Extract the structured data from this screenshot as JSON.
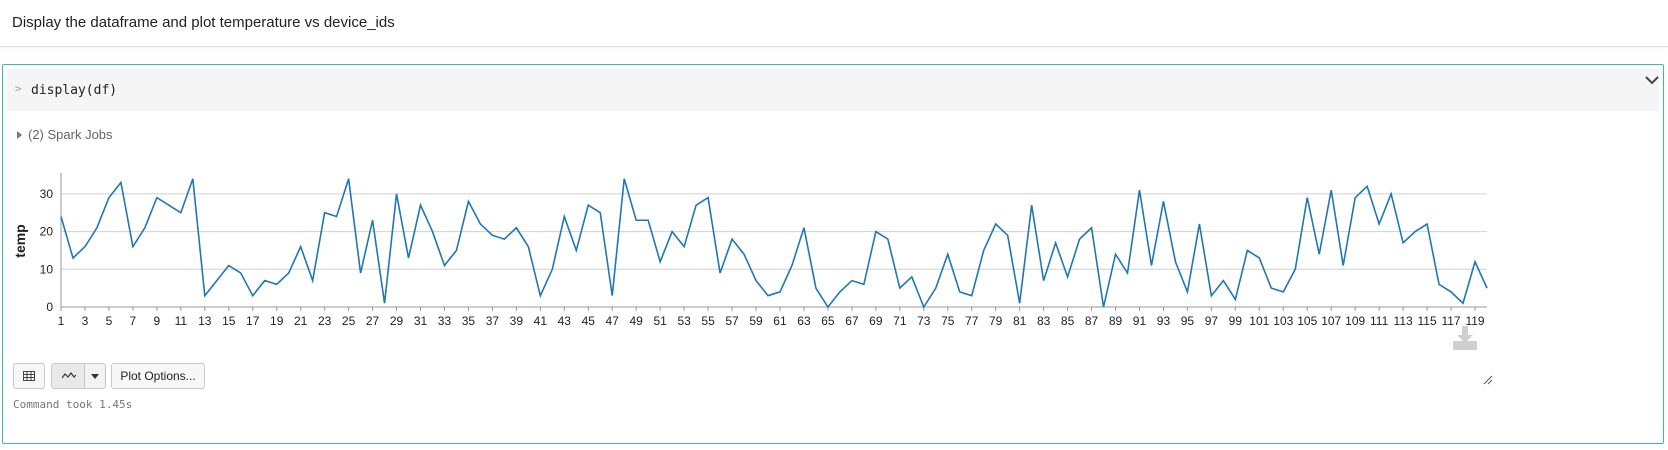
{
  "markdown": {
    "text": "Display the dataframe and plot temperature vs device_ids"
  },
  "code_cell": {
    "code": "display(df)",
    "spark_jobs_label": "(2) Spark Jobs",
    "plot_options_label": "Plot Options...",
    "status_text": "Command took 1.45s"
  },
  "icons": {
    "collapse": "chevron-down-icon",
    "table": "table-icon",
    "line_chart": "line-chart-icon",
    "download": "download-icon",
    "resize": "resize-handle-icon"
  },
  "colors": {
    "accent": "#3cb8b3",
    "series": "#1f77b4"
  },
  "chart_data": {
    "type": "line",
    "xlabel": "",
    "ylabel": "temp",
    "ylim": [
      0,
      35
    ],
    "yticks": [
      0,
      10,
      20,
      30
    ],
    "grid": true,
    "x": [
      1,
      2,
      3,
      4,
      5,
      6,
      7,
      8,
      9,
      10,
      11,
      12,
      13,
      14,
      15,
      16,
      17,
      18,
      19,
      20,
      21,
      22,
      23,
      24,
      25,
      26,
      27,
      28,
      29,
      30,
      31,
      32,
      33,
      34,
      35,
      36,
      37,
      38,
      39,
      40,
      41,
      42,
      43,
      44,
      45,
      46,
      47,
      48,
      49,
      50,
      51,
      52,
      53,
      54,
      55,
      56,
      57,
      58,
      59,
      60,
      61,
      62,
      63,
      64,
      65,
      66,
      67,
      68,
      69,
      70,
      71,
      72,
      73,
      74,
      75,
      76,
      77,
      78,
      79,
      80,
      81,
      82,
      83,
      84,
      85,
      86,
      87,
      88,
      89,
      90,
      91,
      92,
      93,
      94,
      95,
      96,
      97,
      98,
      99,
      100,
      101,
      102,
      103,
      104,
      105,
      106,
      107,
      108,
      109,
      110,
      111,
      112,
      113,
      114,
      115,
      116,
      117,
      118,
      119,
      120
    ],
    "xtick_labels": [
      1,
      3,
      5,
      7,
      9,
      11,
      13,
      15,
      17,
      19,
      21,
      23,
      25,
      27,
      29,
      31,
      33,
      35,
      37,
      39,
      41,
      43,
      45,
      47,
      49,
      51,
      53,
      55,
      57,
      59,
      61,
      63,
      65,
      67,
      69,
      71,
      73,
      75,
      77,
      79,
      81,
      83,
      85,
      87,
      89,
      91,
      93,
      95,
      97,
      99,
      101,
      103,
      105,
      107,
      109,
      111,
      113,
      115,
      117,
      119
    ],
    "series": [
      {
        "values": [
          24,
          13,
          16,
          21,
          29,
          33,
          16,
          21,
          29,
          27,
          25,
          34,
          3,
          7,
          11,
          9,
          3,
          7,
          6,
          9,
          16,
          7,
          25,
          24,
          34,
          9,
          23,
          1,
          30,
          13,
          27,
          20,
          11,
          15,
          28,
          22,
          19,
          18,
          21,
          16,
          3,
          10,
          24,
          15,
          27,
          25,
          3,
          34,
          23,
          23,
          12,
          20,
          16,
          27,
          29,
          9,
          18,
          14,
          7,
          3,
          4,
          11,
          21,
          5,
          0,
          4,
          7,
          6,
          20,
          18,
          5,
          8,
          0,
          5,
          14,
          4,
          3,
          15,
          22,
          19,
          1,
          27,
          7,
          17,
          8,
          18,
          21,
          0,
          14,
          9,
          31,
          11,
          28,
          12,
          4,
          22,
          3,
          7,
          2,
          15,
          13,
          5,
          4,
          10,
          29,
          14,
          31,
          11,
          29,
          32,
          22,
          30,
          17,
          20,
          22,
          6,
          4,
          1,
          12,
          5
        ]
      }
    ]
  }
}
